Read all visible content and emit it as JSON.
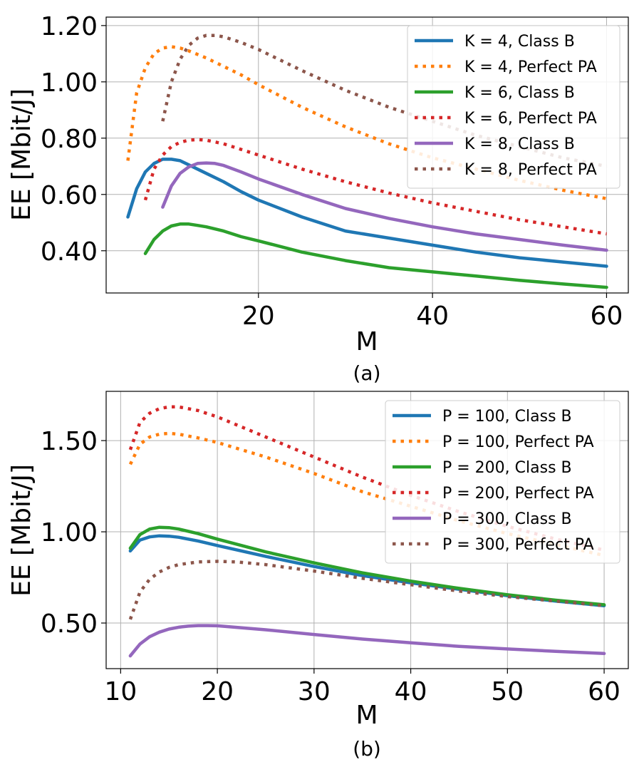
{
  "chart_data": [
    {
      "type": "line",
      "caption": "(a)",
      "xlabel": "M",
      "ylabel": "EE [Mbit/J]",
      "xlim": [
        2.5,
        62.5
      ],
      "ylim": [
        0.25,
        1.23
      ],
      "xticks": [
        20,
        40,
        60
      ],
      "yticks": [
        0.4,
        0.6,
        0.8,
        1.0,
        1.2
      ],
      "xtick_labels": [
        "20",
        "40",
        "60"
      ],
      "ytick_labels": [
        "0.40",
        "0.60",
        "0.80",
        "1.00",
        "1.20"
      ],
      "grid": true,
      "legend_position": "top-right",
      "series": [
        {
          "name": "K = 4, Class B",
          "color": "#1f77b4",
          "style": "solid",
          "x": [
            5,
            6,
            7,
            8,
            9,
            10,
            11,
            12,
            14,
            16,
            18,
            20,
            25,
            30,
            35,
            40,
            45,
            50,
            55,
            60
          ],
          "y": [
            0.52,
            0.62,
            0.68,
            0.71,
            0.725,
            0.725,
            0.72,
            0.705,
            0.675,
            0.645,
            0.61,
            0.58,
            0.52,
            0.47,
            0.445,
            0.42,
            0.395,
            0.375,
            0.36,
            0.345
          ]
        },
        {
          "name": "K = 4, Perfect PA",
          "color": "#ff7f0e",
          "style": "dotted",
          "x": [
            5,
            6,
            7,
            8,
            9,
            10,
            11,
            12,
            14,
            16,
            18,
            20,
            25,
            30,
            35,
            40,
            45,
            50,
            55,
            60
          ],
          "y": [
            0.72,
            0.96,
            1.05,
            1.1,
            1.12,
            1.125,
            1.12,
            1.11,
            1.085,
            1.055,
            1.025,
            0.99,
            0.91,
            0.84,
            0.78,
            0.73,
            0.69,
            0.65,
            0.615,
            0.585
          ]
        },
        {
          "name": "K = 6, Class B",
          "color": "#2ca02c",
          "style": "solid",
          "x": [
            7,
            8,
            9,
            10,
            11,
            12,
            13,
            14,
            16,
            18,
            20,
            25,
            30,
            35,
            40,
            45,
            50,
            55,
            60
          ],
          "y": [
            0.39,
            0.44,
            0.47,
            0.488,
            0.495,
            0.495,
            0.49,
            0.485,
            0.47,
            0.45,
            0.435,
            0.395,
            0.365,
            0.34,
            0.325,
            0.31,
            0.295,
            0.282,
            0.27
          ]
        },
        {
          "name": "K = 6, Perfect PA",
          "color": "#d62728",
          "style": "dotted",
          "x": [
            7,
            8,
            9,
            10,
            11,
            12,
            13,
            14,
            16,
            18,
            20,
            25,
            30,
            35,
            40,
            45,
            50,
            55,
            60
          ],
          "y": [
            0.58,
            0.69,
            0.74,
            0.77,
            0.785,
            0.793,
            0.795,
            0.793,
            0.78,
            0.76,
            0.74,
            0.69,
            0.645,
            0.605,
            0.57,
            0.54,
            0.51,
            0.485,
            0.46
          ]
        },
        {
          "name": "K = 8, Class B",
          "color": "#9467bd",
          "style": "solid",
          "x": [
            9,
            10,
            11,
            12,
            13,
            14,
            15,
            16,
            18,
            20,
            25,
            30,
            35,
            40,
            45,
            50,
            55,
            60
          ],
          "y": [
            0.555,
            0.63,
            0.675,
            0.698,
            0.71,
            0.712,
            0.71,
            0.703,
            0.68,
            0.655,
            0.6,
            0.55,
            0.515,
            0.485,
            0.46,
            0.44,
            0.42,
            0.402
          ]
        },
        {
          "name": "K = 8, Perfect PA",
          "color": "#8c564b",
          "style": "dotted",
          "x": [
            9,
            10,
            11,
            12,
            13,
            14,
            15,
            16,
            18,
            20,
            25,
            30,
            35,
            40,
            45,
            50,
            55,
            60
          ],
          "y": [
            0.86,
            1.0,
            1.08,
            1.13,
            1.155,
            1.165,
            1.165,
            1.16,
            1.14,
            1.115,
            1.04,
            0.97,
            0.91,
            0.86,
            0.81,
            0.77,
            0.73,
            0.7
          ]
        }
      ]
    },
    {
      "type": "line",
      "caption": "(b)",
      "xlabel": "M",
      "ylabel": "EE [Mbit/J]",
      "xlim": [
        8.5,
        62.5
      ],
      "ylim": [
        0.25,
        1.77
      ],
      "xticks": [
        10,
        20,
        30,
        40,
        50,
        60
      ],
      "yticks": [
        0.5,
        1.0,
        1.5
      ],
      "xtick_labels": [
        "10",
        "20",
        "30",
        "40",
        "50",
        "60"
      ],
      "ytick_labels": [
        "0.50",
        "1.00",
        "1.50"
      ],
      "grid": true,
      "legend_position": "top-right",
      "series": [
        {
          "name": "P = 100, Class B",
          "color": "#1f77b4",
          "style": "solid",
          "x": [
            11,
            12,
            13,
            14,
            15,
            16,
            18,
            20,
            25,
            30,
            35,
            40,
            45,
            50,
            55,
            60
          ],
          "y": [
            0.895,
            0.955,
            0.972,
            0.978,
            0.976,
            0.97,
            0.95,
            0.925,
            0.865,
            0.81,
            0.76,
            0.72,
            0.685,
            0.65,
            0.62,
            0.595
          ]
        },
        {
          "name": "P = 100, Perfect PA",
          "color": "#ff7f0e",
          "style": "dotted",
          "x": [
            11,
            12,
            13,
            14,
            15,
            16,
            18,
            20,
            25,
            30,
            35,
            40,
            45,
            50,
            55,
            60
          ],
          "y": [
            1.37,
            1.48,
            1.52,
            1.535,
            1.54,
            1.535,
            1.515,
            1.49,
            1.41,
            1.32,
            1.22,
            1.14,
            1.06,
            0.99,
            0.93,
            0.87
          ]
        },
        {
          "name": "P = 200, Class B",
          "color": "#2ca02c",
          "style": "solid",
          "x": [
            11,
            12,
            13,
            14,
            15,
            16,
            18,
            20,
            25,
            30,
            35,
            40,
            45,
            50,
            55,
            60
          ],
          "y": [
            0.91,
            0.985,
            1.015,
            1.025,
            1.023,
            1.015,
            0.99,
            0.96,
            0.89,
            0.83,
            0.775,
            0.73,
            0.69,
            0.655,
            0.625,
            0.6
          ]
        },
        {
          "name": "P = 200, Perfect PA",
          "color": "#d62728",
          "style": "dotted",
          "x": [
            11,
            12,
            13,
            14,
            15,
            16,
            18,
            20,
            25,
            30,
            35,
            40,
            45,
            50,
            55,
            60
          ],
          "y": [
            1.45,
            1.6,
            1.65,
            1.675,
            1.685,
            1.685,
            1.665,
            1.63,
            1.52,
            1.41,
            1.3,
            1.2,
            1.11,
            1.03,
            0.96,
            0.9
          ]
        },
        {
          "name": "P = 300, Class B",
          "color": "#9467bd",
          "style": "solid",
          "x": [
            11,
            12,
            13,
            14,
            15,
            16,
            17,
            18,
            19,
            20,
            25,
            30,
            35,
            40,
            45,
            50,
            55,
            60
          ],
          "y": [
            0.32,
            0.385,
            0.425,
            0.45,
            0.467,
            0.477,
            0.483,
            0.486,
            0.486,
            0.485,
            0.463,
            0.437,
            0.412,
            0.392,
            0.372,
            0.358,
            0.345,
            0.333
          ]
        },
        {
          "name": "P = 300, Perfect PA",
          "color": "#8c564b",
          "style": "dotted",
          "x": [
            11,
            12,
            13,
            14,
            15,
            16,
            18,
            20,
            22,
            25,
            30,
            35,
            40,
            45,
            50,
            55,
            60
          ],
          "y": [
            0.52,
            0.67,
            0.74,
            0.78,
            0.805,
            0.82,
            0.835,
            0.838,
            0.835,
            0.82,
            0.785,
            0.745,
            0.71,
            0.675,
            0.645,
            0.62,
            0.595
          ]
        }
      ]
    }
  ]
}
